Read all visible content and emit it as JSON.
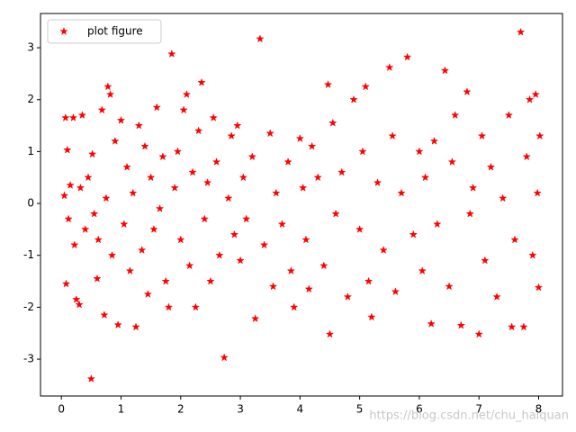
{
  "chart_data": {
    "type": "scatter",
    "marker": "*",
    "legend": "upper left",
    "grid": false,
    "watermark": "https://blog.csdn.net/chu_haiquan",
    "xlim": [
      -0.35,
      8.4
    ],
    "ylim": [
      -3.71,
      3.66
    ],
    "xticks": [
      0,
      1,
      2,
      3,
      4,
      5,
      6,
      7,
      8
    ],
    "yticks": [
      -3,
      -2,
      -1,
      0,
      1,
      2,
      3
    ],
    "x": [
      0.05,
      0.07,
      0.08,
      0.1,
      0.12,
      0.15,
      0.2,
      0.22,
      0.25,
      0.3,
      0.32,
      0.35,
      0.4,
      0.45,
      0.5,
      0.52,
      0.55,
      0.6,
      0.62,
      0.68,
      0.72,
      0.75,
      0.78,
      0.82,
      0.85,
      0.9,
      0.95,
      1.0,
      1.05,
      1.1,
      1.15,
      1.2,
      1.25,
      1.3,
      1.35,
      1.4,
      1.45,
      1.5,
      1.55,
      1.6,
      1.65,
      1.7,
      1.75,
      1.8,
      1.85,
      1.9,
      1.95,
      2.0,
      2.05,
      2.1,
      2.15,
      2.2,
      2.25,
      2.3,
      2.35,
      2.4,
      2.45,
      2.5,
      2.55,
      2.6,
      2.65,
      2.73,
      2.8,
      2.85,
      2.9,
      2.95,
      3.0,
      3.05,
      3.1,
      3.2,
      3.25,
      3.33,
      3.4,
      3.5,
      3.55,
      3.6,
      3.7,
      3.8,
      3.85,
      3.9,
      4.0,
      4.05,
      4.1,
      4.15,
      4.2,
      4.3,
      4.4,
      4.47,
      4.5,
      4.55,
      4.6,
      4.7,
      4.8,
      4.9,
      5.0,
      5.05,
      5.1,
      5.15,
      5.2,
      5.3,
      5.4,
      5.5,
      5.55,
      5.6,
      5.7,
      5.8,
      5.9,
      6.0,
      6.05,
      6.1,
      6.2,
      6.25,
      6.3,
      6.43,
      6.5,
      6.55,
      6.6,
      6.7,
      6.8,
      6.85,
      6.9,
      7.0,
      7.05,
      7.1,
      7.2,
      7.3,
      7.4,
      7.5,
      7.55,
      7.6,
      7.7,
      7.75,
      7.8,
      7.85,
      7.9,
      7.95,
      8.0,
      8.02,
      7.98
    ],
    "series": [
      {
        "name": "plot figure",
        "color": "#ff0000",
        "values": [
          0.15,
          1.65,
          -1.55,
          1.03,
          -0.3,
          0.35,
          1.65,
          -0.8,
          -1.85,
          -1.95,
          0.3,
          1.7,
          -0.5,
          0.5,
          -3.38,
          0.95,
          -0.2,
          -1.45,
          -0.7,
          1.8,
          -2.15,
          0.1,
          2.25,
          2.1,
          -1.0,
          1.2,
          -2.34,
          1.6,
          -0.4,
          0.7,
          -1.3,
          0.2,
          -2.38,
          1.5,
          -0.9,
          1.1,
          -1.75,
          0.5,
          -0.5,
          1.85,
          -0.1,
          0.9,
          -1.5,
          -2.0,
          2.88,
          0.3,
          1.0,
          -0.7,
          1.8,
          2.1,
          -1.2,
          0.6,
          -2.0,
          1.4,
          2.33,
          -0.3,
          0.4,
          -1.5,
          1.65,
          0.8,
          -1.0,
          -2.97,
          0.1,
          1.3,
          -0.6,
          1.5,
          -1.1,
          0.5,
          -0.3,
          0.9,
          -2.22,
          3.17,
          -0.8,
          1.35,
          -1.6,
          0.2,
          -0.4,
          0.8,
          -1.3,
          -2.0,
          1.25,
          0.3,
          -0.7,
          -1.65,
          1.1,
          0.5,
          -1.2,
          2.29,
          -2.52,
          1.55,
          -0.2,
          0.6,
          -1.8,
          2.0,
          -0.5,
          1.0,
          2.25,
          -1.5,
          -2.19,
          0.4,
          -0.9,
          2.62,
          1.3,
          -1.7,
          0.2,
          2.82,
          -0.6,
          1.0,
          -1.3,
          0.5,
          -2.32,
          1.2,
          -0.4,
          2.56,
          -1.6,
          0.8,
          1.7,
          -2.35,
          2.15,
          -0.2,
          0.3,
          -2.52,
          1.3,
          -1.1,
          0.7,
          -1.8,
          0.1,
          1.7,
          -2.38,
          -0.7,
          3.3,
          -2.38,
          0.9,
          2.0,
          -1.0,
          2.1,
          -1.62,
          1.3,
          0.2
        ]
      }
    ]
  }
}
